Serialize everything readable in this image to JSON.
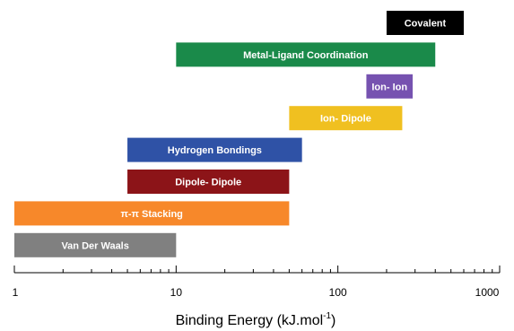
{
  "chart_data": {
    "type": "bar",
    "orientation": "horizontal",
    "x_scale": "log",
    "xlim": [
      1,
      1000
    ],
    "xlabel": "Binding Energy (kJ.mol",
    "xlabel_sup": "-1",
    "xlabel_end": ")",
    "x_ticks": [
      1,
      10,
      100,
      1000
    ],
    "x_tick_labels": [
      "1",
      "10",
      "100",
      "1000"
    ],
    "grid": false,
    "bars": [
      {
        "label": "Covalent",
        "start": 200,
        "end": 600,
        "color": "#000000"
      },
      {
        "label": "Metal-Ligand Coordination",
        "start": 10,
        "end": 400,
        "color": "#1a8a4a"
      },
      {
        "label": "Ion- Ion",
        "start": 150,
        "end": 290,
        "color": "#7652b0"
      },
      {
        "label": "Ion- Dipole",
        "start": 50,
        "end": 250,
        "color": "#f0c020"
      },
      {
        "label": "Hydrogen Bondings",
        "start": 5,
        "end": 60,
        "color": "#2f52a6"
      },
      {
        "label": "Dipole- Dipole",
        "start": 5,
        "end": 50,
        "color": "#8c1418"
      },
      {
        "label": "π-π Stacking",
        "start": 1,
        "end": 50,
        "color": "#f7882a"
      },
      {
        "label": "Van Der Waals",
        "start": 1,
        "end": 10,
        "color": "#808080"
      }
    ]
  }
}
